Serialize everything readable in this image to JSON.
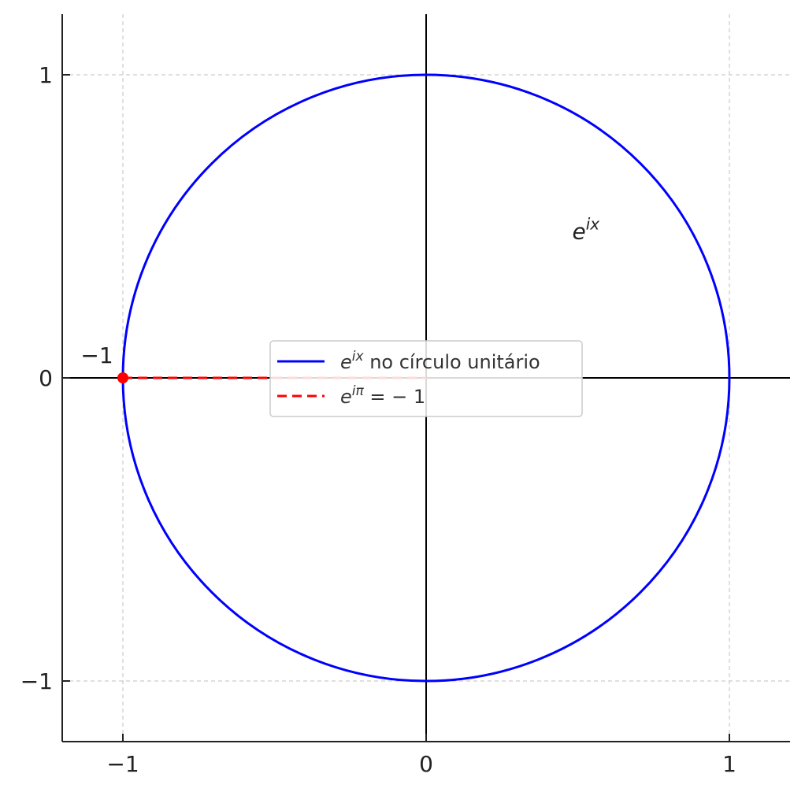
{
  "chart_data": {
    "type": "line",
    "title": "",
    "xlabel": "",
    "ylabel": "",
    "xlim": [
      -1.2,
      1.2
    ],
    "ylim": [
      -1.2,
      1.2
    ],
    "grid": true,
    "aspect": "equal",
    "x_ticks": [
      -1,
      0,
      1
    ],
    "y_ticks": [
      -1,
      0,
      1
    ],
    "x_tick_labels": [
      "−1",
      "0",
      "1"
    ],
    "y_tick_labels": [
      "−1",
      "0",
      "1"
    ],
    "series": [
      {
        "name_base": "e",
        "name_sup": "ix",
        "name_rest": " no círculo unitário",
        "kind": "parametric-circle",
        "radius": 1,
        "center": [
          0,
          0
        ],
        "color": "#0000ff",
        "style": "solid"
      },
      {
        "name_base": "e",
        "name_sup": "iπ",
        "name_rest": " = − 1",
        "kind": "segment",
        "x": [
          -1,
          0
        ],
        "y": [
          0,
          0
        ],
        "color": "#ff0000",
        "style": "dashed"
      }
    ],
    "point": {
      "x": -1,
      "y": 0,
      "color": "#ff0000",
      "label": "−1"
    },
    "annotations": [
      {
        "base": "e",
        "sup": "ix",
        "x": 0.5,
        "y": 0.5
      }
    ],
    "axes_lines": {
      "color": "#000000",
      "through_origin": true
    },
    "legend": {
      "placement": "center"
    }
  }
}
